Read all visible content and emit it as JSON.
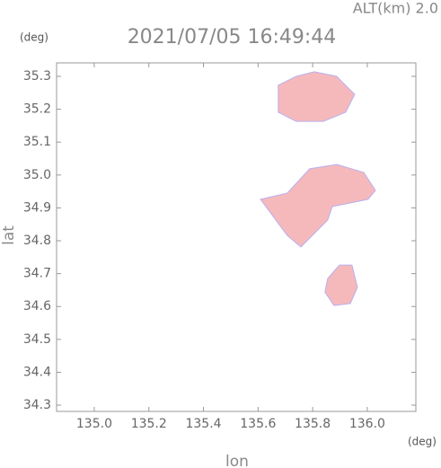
{
  "chart_data": {
    "type": "map",
    "title": "2021/07/05 16:49:44",
    "subtitle": "ALT(km) 2.0",
    "xlabel": "lon",
    "ylabel": "lat",
    "xunit": "(deg)",
    "yunit": "(deg)",
    "xlim": [
      134.862,
      136.178
    ],
    "ylim": [
      34.281,
      35.341
    ],
    "xticks": [
      {
        "value": 135,
        "label": "135.0"
      },
      135.2,
      135.4,
      135.6,
      135.8,
      {
        "value": 136,
        "label": "136.0"
      }
    ],
    "yticks": [
      34.3,
      34.4,
      34.5,
      34.6,
      34.7,
      34.8,
      34.9,
      {
        "value": 35,
        "label": "35.0"
      },
      35.1,
      35.2,
      35.3
    ],
    "color": "#f6b9bb",
    "regions": [
      {
        "lon": [
          135.674,
          135.74,
          135.806,
          135.888,
          135.954,
          135.921,
          135.839,
          135.74,
          135.674
        ],
        "lat": [
          35.273,
          35.3,
          35.314,
          35.3,
          35.245,
          35.191,
          35.163,
          35.163,
          35.191
        ]
      },
      {
        "lon": [
          135.609,
          135.707,
          135.789,
          135.888,
          135.987,
          136.03,
          136.003,
          135.872,
          135.855,
          135.789,
          135.757,
          135.707,
          135.641
        ],
        "lat": [
          34.926,
          34.945,
          35.019,
          35.032,
          35.008,
          34.953,
          34.926,
          34.904,
          34.863,
          34.808,
          34.781,
          34.816,
          34.89
        ]
      },
      {
        "lon": [
          135.855,
          135.898,
          135.944,
          135.964,
          135.938,
          135.878,
          135.845
        ],
        "lat": [
          34.685,
          34.726,
          34.726,
          34.658,
          34.609,
          34.603,
          34.644
        ]
      }
    ]
  }
}
